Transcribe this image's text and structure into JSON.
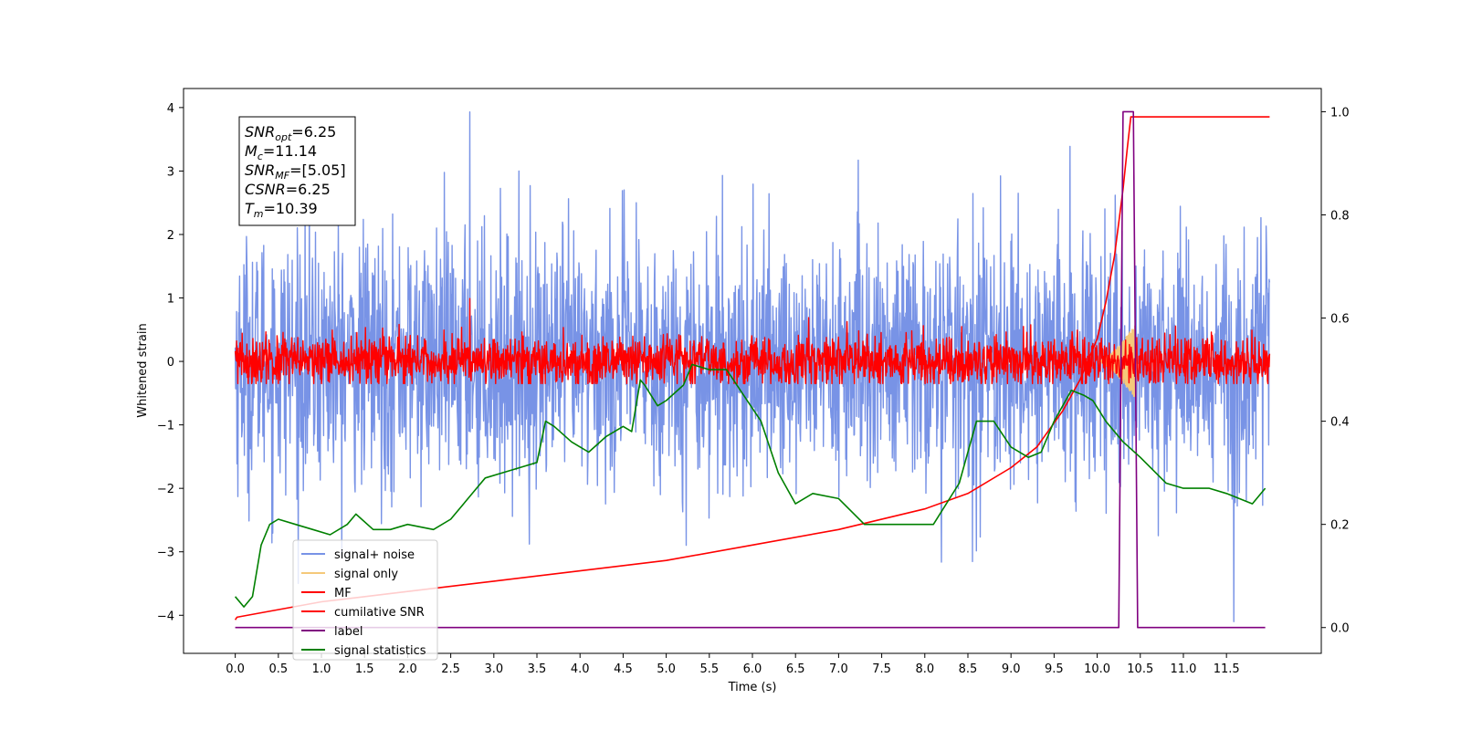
{
  "chart_data": {
    "type": "line",
    "xlabel": "Time (s)",
    "ylabel": "Whitened strain",
    "xlim": [
      -0.6,
      12.6
    ],
    "ylim": [
      -4.6,
      4.3
    ],
    "y2lim": [
      -0.05,
      1.045
    ],
    "grid": false,
    "legend_position": "lower-left",
    "x_ticks": [
      "0.0",
      "0.5",
      "1.0",
      "1.5",
      "2.0",
      "2.5",
      "3.0",
      "3.5",
      "4.0",
      "4.5",
      "5.0",
      "5.5",
      "6.0",
      "6.5",
      "7.0",
      "7.5",
      "8.0",
      "8.5",
      "9.0",
      "9.5",
      "10.0",
      "10.5",
      "11.0",
      "11.5"
    ],
    "y_ticks": [
      "4",
      "3",
      "2",
      "1",
      "0",
      "−1",
      "−2",
      "−3",
      "−4"
    ],
    "y2_ticks": [
      "1.0",
      "0.8",
      "0.6",
      "0.4",
      "0.2",
      "0.0"
    ],
    "info_box": [
      {
        "base": "SNR",
        "sub": "opt",
        "rest": "=6.25"
      },
      {
        "base": "M",
        "sub": "c",
        "rest": "=11.14"
      },
      {
        "base": "SNR",
        "sub": "MF",
        "rest": "=[5.05]"
      },
      {
        "base": "CSNR",
        "sub": "",
        "rest": "=6.25"
      },
      {
        "base": "T",
        "sub": "m",
        "rest": "=10.39"
      }
    ],
    "series": [
      {
        "name": "signal+ noise",
        "color": "#7893e6",
        "axis": "left",
        "kind": "noise",
        "x_range": [
          0,
          12.0
        ],
        "center": 0.0,
        "spread": 1.0,
        "peak_max": 3.93,
        "peak_min": -4.1
      },
      {
        "name": "signal only",
        "color": "#f5c97a",
        "axis": "left",
        "kind": "chirp",
        "x_range": [
          10.0,
          10.45
        ],
        "amplitude": 0.6
      },
      {
        "name": "MF",
        "color": "#ff0000",
        "axis": "left",
        "kind": "noise",
        "x_range": [
          0,
          12.0
        ],
        "center": 0.0,
        "spread": 0.2,
        "peak_max": 0.99,
        "peak_min": -0.35
      },
      {
        "name": "cumilative SNR",
        "color": "#ff0000",
        "axis": "right",
        "kind": "line",
        "x": [
          0.0,
          0.02,
          1.0,
          2.0,
          3.0,
          4.0,
          5.0,
          6.0,
          7.0,
          8.0,
          8.5,
          9.0,
          9.3,
          9.6,
          9.8,
          10.0,
          10.1,
          10.2,
          10.3,
          10.35,
          10.39,
          10.5,
          11.0,
          11.5,
          12.0
        ],
        "y": [
          0.015,
          0.02,
          0.05,
          0.07,
          0.09,
          0.11,
          0.13,
          0.16,
          0.19,
          0.23,
          0.26,
          0.31,
          0.35,
          0.42,
          0.48,
          0.56,
          0.63,
          0.72,
          0.85,
          0.93,
          0.99,
          0.99,
          0.99,
          0.99,
          0.99
        ]
      },
      {
        "name": "label",
        "color": "#800080",
        "axis": "right",
        "kind": "line",
        "x": [
          0.0,
          10.25,
          10.3,
          10.42,
          10.47,
          11.95
        ],
        "y": [
          0.0,
          0.0,
          1.0,
          1.0,
          0.0,
          0.0
        ]
      },
      {
        "name": "signal statistics",
        "color": "#008000",
        "axis": "right",
        "kind": "line",
        "x": [
          0.0,
          0.1,
          0.2,
          0.3,
          0.4,
          0.5,
          0.7,
          0.9,
          1.1,
          1.3,
          1.4,
          1.6,
          1.8,
          2.0,
          2.3,
          2.5,
          2.7,
          2.8,
          2.9,
          3.1,
          3.3,
          3.5,
          3.6,
          3.7,
          3.9,
          4.1,
          4.3,
          4.5,
          4.6,
          4.7,
          4.75,
          4.9,
          5.0,
          5.2,
          5.3,
          5.5,
          5.7,
          5.9,
          6.1,
          6.3,
          6.5,
          6.7,
          7.0,
          7.3,
          7.5,
          7.8,
          8.1,
          8.4,
          8.6,
          8.8,
          9.0,
          9.2,
          9.35,
          9.5,
          9.7,
          9.85,
          9.95,
          10.1,
          10.3,
          10.5,
          10.8,
          11.0,
          11.3,
          11.5,
          11.8,
          11.95
        ],
        "y": [
          0.06,
          0.04,
          0.06,
          0.16,
          0.2,
          0.21,
          0.2,
          0.19,
          0.18,
          0.2,
          0.22,
          0.19,
          0.19,
          0.2,
          0.19,
          0.21,
          0.25,
          0.27,
          0.29,
          0.3,
          0.31,
          0.32,
          0.4,
          0.39,
          0.36,
          0.34,
          0.37,
          0.39,
          0.38,
          0.48,
          0.47,
          0.43,
          0.44,
          0.47,
          0.51,
          0.5,
          0.5,
          0.45,
          0.4,
          0.3,
          0.24,
          0.26,
          0.25,
          0.2,
          0.2,
          0.2,
          0.2,
          0.28,
          0.4,
          0.4,
          0.35,
          0.33,
          0.34,
          0.4,
          0.46,
          0.45,
          0.44,
          0.4,
          0.36,
          0.33,
          0.28,
          0.27,
          0.27,
          0.26,
          0.24,
          0.27
        ]
      }
    ]
  }
}
